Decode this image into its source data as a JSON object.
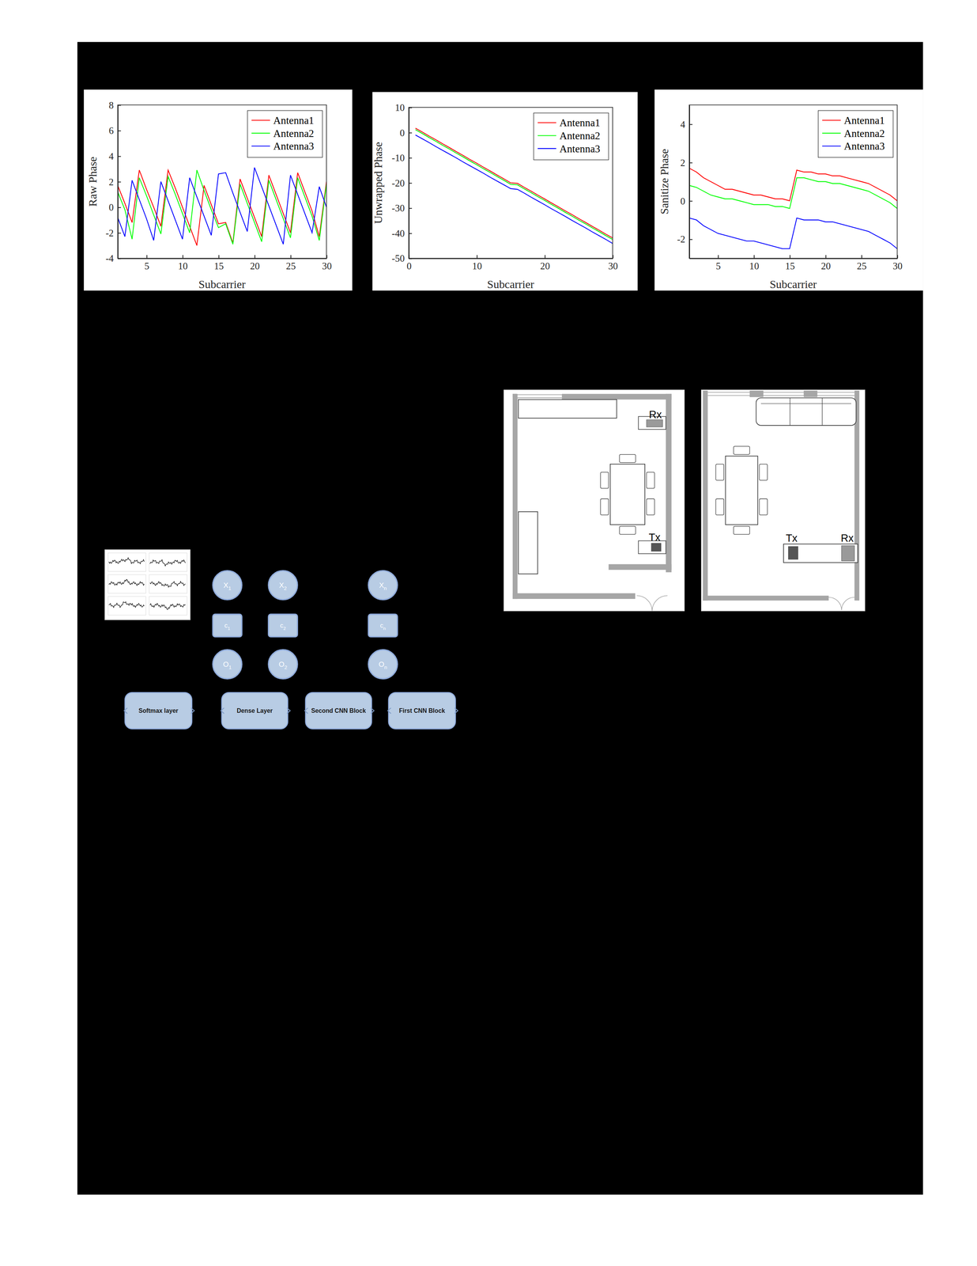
{
  "chart_data": [
    {
      "type": "line",
      "x_label": "Subcarrier",
      "y_label": "Raw Phase",
      "x": [
        1,
        2,
        3,
        4,
        5,
        6,
        7,
        8,
        9,
        10,
        11,
        12,
        13,
        14,
        15,
        16,
        17,
        18,
        19,
        20,
        21,
        22,
        23,
        24,
        25,
        26,
        27,
        28,
        29,
        30
      ],
      "xlim": [
        1,
        30
      ],
      "xticks": [
        5,
        10,
        15,
        20,
        25,
        30
      ],
      "ylim": [
        -4,
        8
      ],
      "yticks": [
        -4,
        -2,
        0,
        2,
        4,
        6,
        8
      ],
      "legend": "upper right",
      "series": [
        {
          "name": "Antenna1",
          "color": "#ff0000",
          "values": [
            1.7,
            0.3,
            -1.2,
            2.9,
            1.4,
            0.0,
            -1.5,
            2.9,
            1.5,
            0.0,
            -1.5,
            -3.0,
            1.7,
            0.2,
            -1.3,
            -1.2,
            -2.8,
            2.2,
            0.7,
            -0.8,
            -2.3,
            2.5,
            1.0,
            -0.5,
            -2.0,
            2.7,
            1.2,
            -0.3,
            -2.3,
            2.0
          ]
        },
        {
          "name": "Antenna2",
          "color": "#00ff00",
          "values": [
            1.2,
            -0.2,
            -2.5,
            2.3,
            0.9,
            -0.6,
            -2.1,
            2.4,
            1.0,
            -0.5,
            -2.0,
            2.9,
            1.3,
            -0.2,
            -1.6,
            -1.3,
            -2.9,
            1.8,
            0.3,
            -1.2,
            -2.7,
            2.1,
            0.6,
            -0.9,
            -2.4,
            2.3,
            0.8,
            -0.7,
            -2.6,
            1.8
          ]
        },
        {
          "name": "Antenna3",
          "color": "#0000ff",
          "values": [
            -0.8,
            -2.3,
            2.1,
            0.6,
            -0.9,
            -2.6,
            2.0,
            0.5,
            -1.0,
            -2.5,
            2.3,
            0.8,
            -0.7,
            -2.2,
            2.6,
            2.7,
            1.1,
            -0.4,
            -1.9,
            3.1,
            1.6,
            0.1,
            -1.4,
            -2.9,
            2.5,
            1.0,
            -0.5,
            -2.0,
            1.6,
            0.0
          ]
        }
      ]
    },
    {
      "type": "line",
      "x_label": "Subcarrier",
      "y_label": "Unwrapped Phase",
      "x": [
        1,
        2,
        3,
        4,
        5,
        6,
        7,
        8,
        9,
        10,
        11,
        12,
        13,
        14,
        15,
        16,
        17,
        18,
        19,
        20,
        21,
        22,
        23,
        24,
        25,
        26,
        27,
        28,
        29,
        30
      ],
      "xlim": [
        0,
        30
      ],
      "xticks": [
        0,
        10,
        20,
        30
      ],
      "ylim": [
        -50,
        10
      ],
      "yticks": [
        -50,
        -40,
        -30,
        -20,
        -10,
        0,
        10
      ],
      "legend": "upper right",
      "series": [
        {
          "name": "Antenna1",
          "color": "#ff0000",
          "values": [
            1.7,
            0.2,
            -1.4,
            -2.9,
            -4.5,
            -6.0,
            -7.6,
            -9.1,
            -10.7,
            -12.2,
            -13.8,
            -15.3,
            -16.9,
            -18.4,
            -20.0,
            -20.2,
            -21.8,
            -23.3,
            -24.9,
            -26.4,
            -28.0,
            -29.5,
            -31.1,
            -32.6,
            -34.2,
            -35.7,
            -37.3,
            -38.8,
            -40.4,
            -41.9
          ]
        },
        {
          "name": "Antenna2",
          "color": "#00ff00",
          "values": [
            1.1,
            -0.4,
            -2.0,
            -3.5,
            -5.1,
            -6.6,
            -8.2,
            -9.7,
            -11.3,
            -12.8,
            -14.4,
            -15.9,
            -17.5,
            -19.0,
            -20.6,
            -20.8,
            -22.4,
            -23.9,
            -25.5,
            -27.0,
            -28.6,
            -30.1,
            -31.7,
            -33.2,
            -34.8,
            -36.3,
            -37.9,
            -39.4,
            -41.0,
            -42.5
          ]
        },
        {
          "name": "Antenna3",
          "color": "#0000ff",
          "values": [
            -1.0,
            -2.5,
            -4.0,
            -5.6,
            -7.1,
            -8.6,
            -10.1,
            -11.7,
            -13.2,
            -14.7,
            -16.2,
            -17.8,
            -19.3,
            -20.8,
            -22.3,
            -22.6,
            -24.1,
            -25.7,
            -27.2,
            -28.7,
            -30.3,
            -31.8,
            -33.3,
            -34.9,
            -36.4,
            -37.9,
            -39.5,
            -41.0,
            -42.5,
            -44.1
          ]
        }
      ]
    },
    {
      "type": "line",
      "x_label": "Subcarrier",
      "y_label": "Sanitize Phase",
      "x": [
        1,
        2,
        3,
        4,
        5,
        6,
        7,
        8,
        9,
        10,
        11,
        12,
        13,
        14,
        15,
        16,
        17,
        18,
        19,
        20,
        21,
        22,
        23,
        24,
        25,
        26,
        27,
        28,
        29,
        30
      ],
      "xlim": [
        1,
        30
      ],
      "xticks": [
        5,
        10,
        15,
        20,
        25,
        30
      ],
      "ylim": [
        -3,
        5
      ],
      "yticks": [
        -2,
        0,
        2,
        4
      ],
      "legend": "upper right",
      "series": [
        {
          "name": "Antenna1",
          "color": "#ff0000",
          "values": [
            1.7,
            1.5,
            1.2,
            1.0,
            0.8,
            0.6,
            0.6,
            0.5,
            0.4,
            0.3,
            0.3,
            0.2,
            0.1,
            0.1,
            0.0,
            1.6,
            1.5,
            1.5,
            1.4,
            1.4,
            1.3,
            1.3,
            1.2,
            1.1,
            1.0,
            0.9,
            0.7,
            0.5,
            0.3,
            0.0
          ]
        },
        {
          "name": "Antenna2",
          "color": "#00ff00",
          "values": [
            0.8,
            0.7,
            0.5,
            0.3,
            0.2,
            0.1,
            0.1,
            0.0,
            -0.1,
            -0.2,
            -0.2,
            -0.2,
            -0.3,
            -0.3,
            -0.4,
            1.2,
            1.2,
            1.1,
            1.0,
            1.0,
            0.9,
            0.9,
            0.8,
            0.7,
            0.6,
            0.5,
            0.3,
            0.1,
            -0.1,
            -0.4
          ]
        },
        {
          "name": "Antenna3",
          "color": "#0000ff",
          "values": [
            -0.9,
            -1.0,
            -1.3,
            -1.5,
            -1.7,
            -1.8,
            -1.9,
            -2.0,
            -2.1,
            -2.1,
            -2.2,
            -2.3,
            -2.4,
            -2.5,
            -2.5,
            -0.9,
            -1.0,
            -1.0,
            -1.0,
            -1.1,
            -1.1,
            -1.2,
            -1.3,
            -1.4,
            -1.5,
            -1.6,
            -1.8,
            -2.0,
            -2.2,
            -2.5
          ]
        }
      ]
    }
  ],
  "cnn_diagram": {
    "inputs": [
      {
        "base": "X",
        "sub": "1"
      },
      {
        "base": "X",
        "sub": "2"
      },
      {
        "base": "X",
        "sub": "n"
      }
    ],
    "cells": [
      {
        "base": "c",
        "sub": "1"
      },
      {
        "base": "c",
        "sub": "2"
      },
      {
        "base": "c",
        "sub": "n"
      }
    ],
    "outputs": [
      {
        "base": "O",
        "sub": "1"
      },
      {
        "base": "O",
        "sub": "2"
      },
      {
        "base": "O",
        "sub": "n"
      }
    ],
    "blocks": [
      "Softmax layer",
      "Dense Layer",
      "Second CNN Block",
      "First CNN Block"
    ]
  },
  "floor_plans": [
    {
      "receiver": "Rx",
      "transmitter": "Tx"
    },
    {
      "receiver": "Rx",
      "transmitter": "Tx"
    }
  ]
}
